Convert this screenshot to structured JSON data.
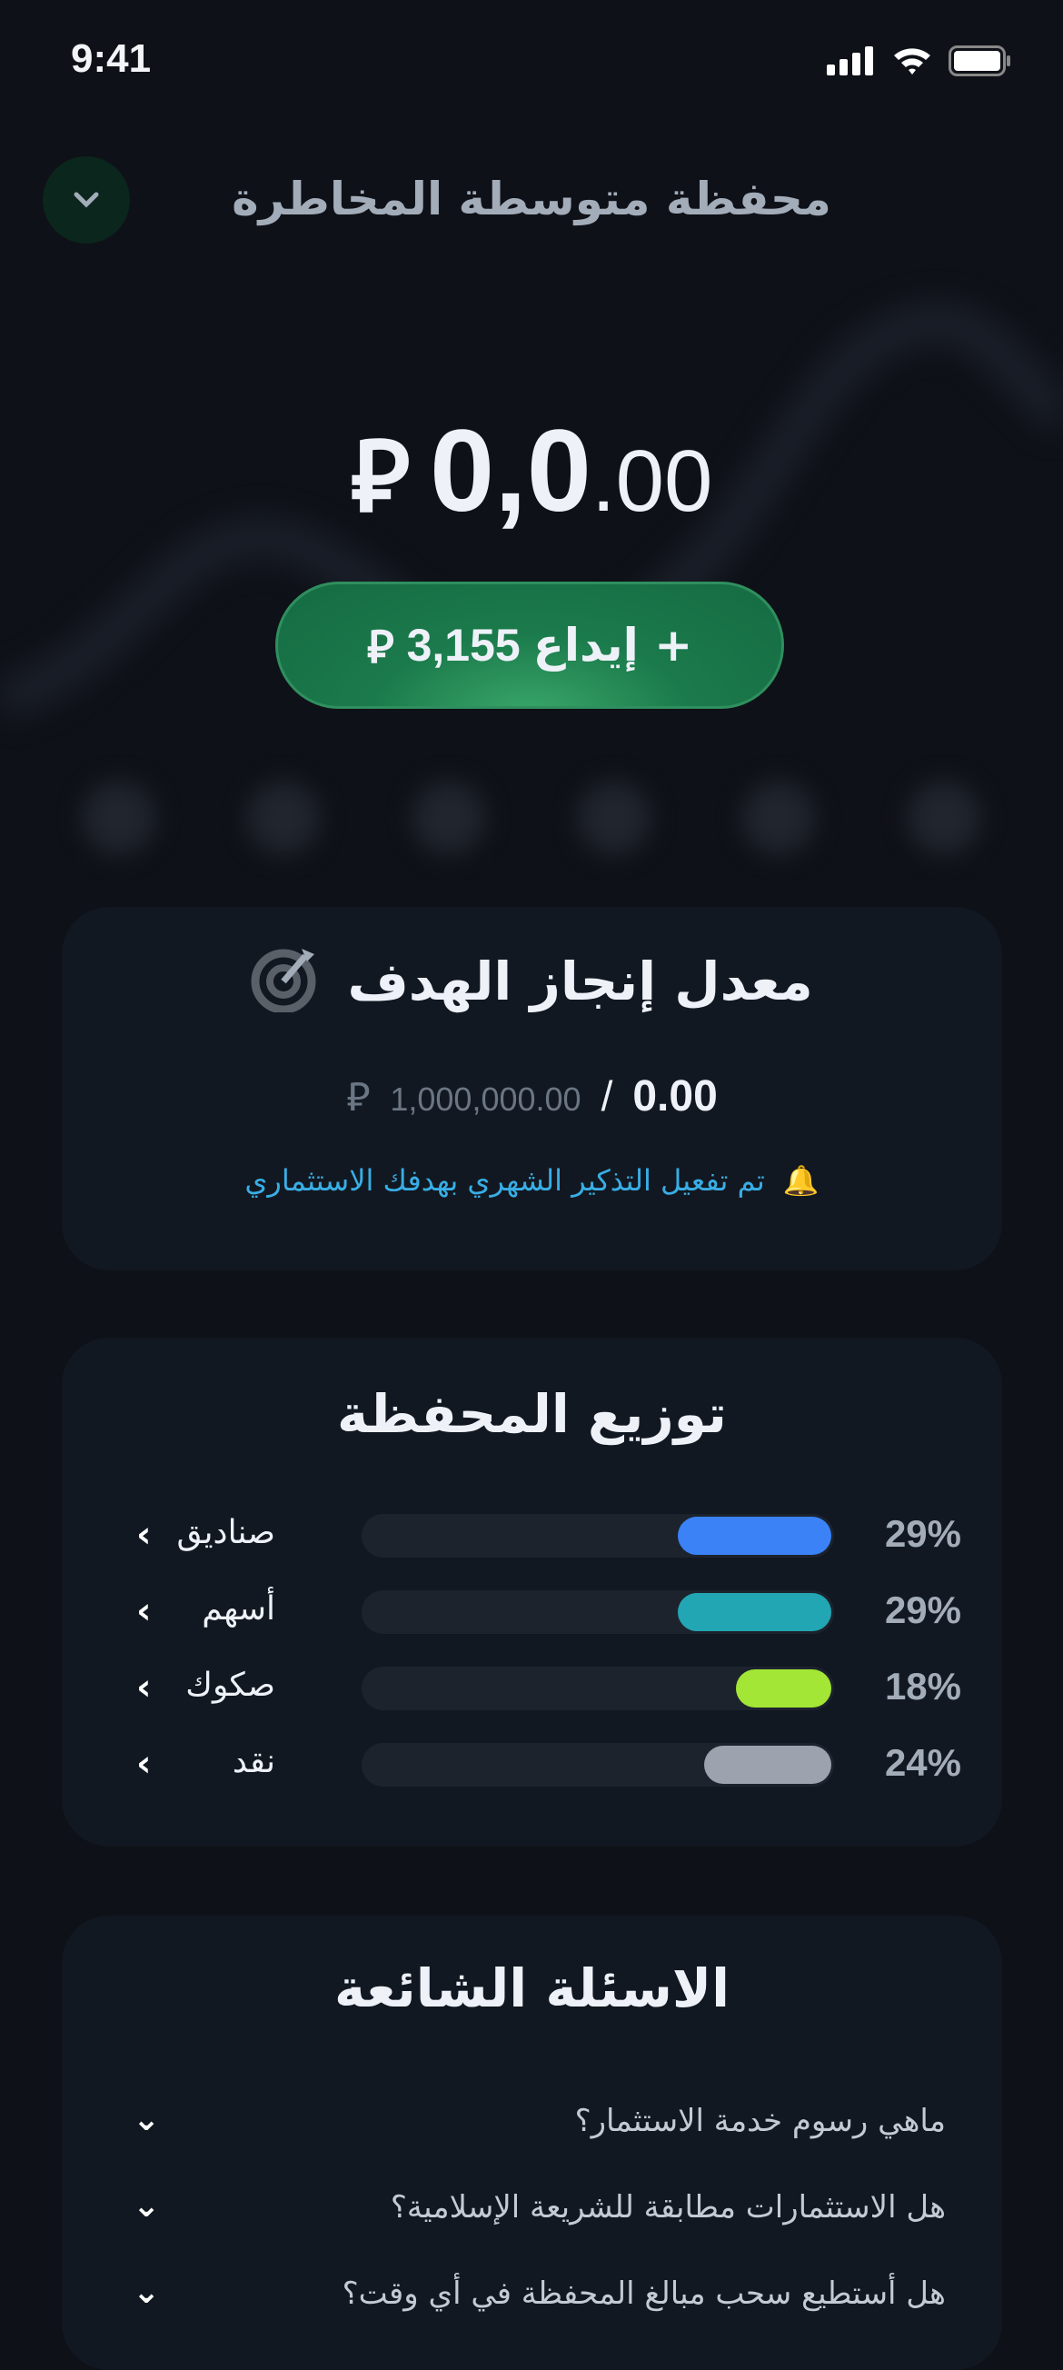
{
  "status_bar": {
    "time": "9:41"
  },
  "header": {
    "title": "محفظة متوسطة المخاطرة"
  },
  "balance": {
    "integer": "0,0",
    "decimal": ".00",
    "currency_symbol": "⃁"
  },
  "deposit_button": {
    "label": "+ إيداع",
    "amount": "3,155",
    "currency_symbol": "⃁"
  },
  "goal_card": {
    "title": "معدل إنجاز الهدف",
    "current": "0.00",
    "separator": "/",
    "target": "1,000,000.00",
    "currency_symbol": "⃁",
    "reminder": "تم تفعيل التذكير الشهري بهدفك الاستثماري"
  },
  "allocation_card": {
    "title": "توزيع المحفظة",
    "items": [
      {
        "label": "صناديق",
        "percent_label": "29%",
        "percent": 29,
        "color": "#3b82f6"
      },
      {
        "label": "أسهم",
        "percent_label": "29%",
        "percent": 29,
        "color": "#22a6b3"
      },
      {
        "label": "صكوك",
        "percent_label": "18%",
        "percent": 18,
        "color": "#a3e635"
      },
      {
        "label": "نقد",
        "percent_label": "24%",
        "percent": 24,
        "color": "#9ca3af"
      }
    ]
  },
  "faq_card": {
    "title": "الاسئلة الشائعة",
    "questions": [
      "ماهي رسوم خدمة الاستثمار؟",
      "هل الاستثمارات مطابقة للشريعة الإسلامية؟",
      "هل أستطيع سحب مبالغ المحفظة في أي وقت؟"
    ]
  }
}
